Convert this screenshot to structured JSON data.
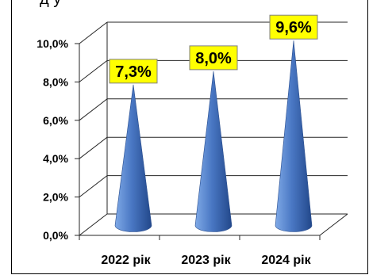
{
  "chart_data": {
    "type": "bar",
    "shape": "cone",
    "title": "",
    "categories": [
      "2022 рік",
      "2023 рік",
      "2024 рік"
    ],
    "values": [
      7.3,
      8.0,
      9.6
    ],
    "data_labels": [
      "7,3%",
      "8,0%",
      "9,6%"
    ],
    "ylim": [
      0,
      10
    ],
    "y_ticks": [
      {
        "value": 0,
        "label": "0,0%"
      },
      {
        "value": 2,
        "label": "2,0%"
      },
      {
        "value": 4,
        "label": "4,0%"
      },
      {
        "value": 6,
        "label": "6,0%"
      },
      {
        "value": 8,
        "label": "8,0%"
      },
      {
        "value": 10,
        "label": "10,0%"
      }
    ],
    "grid": true,
    "legend": "none",
    "colors": {
      "cone_light": "#7fa9e6",
      "cone_mid": "#4a78c4",
      "cone_dark": "#22478a",
      "label_background": "#ffff00",
      "label_border": "#7f7f7f",
      "gridline": "#262626"
    }
  }
}
